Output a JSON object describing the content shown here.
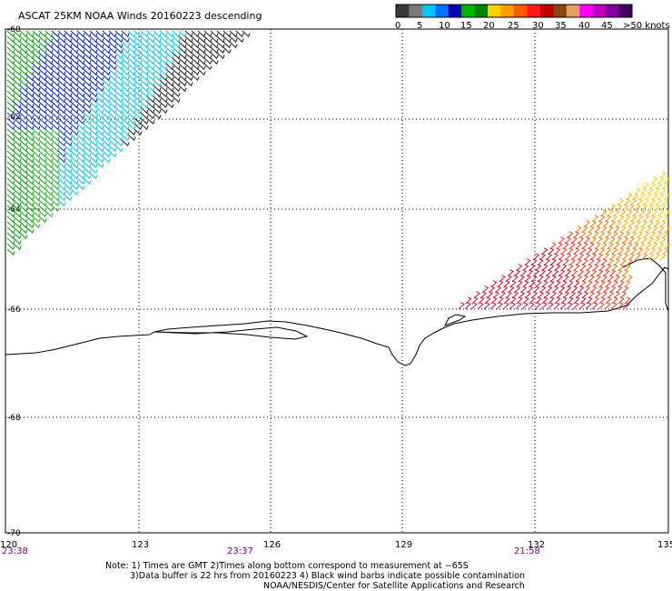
{
  "title": "ASCAT 25KM NOAA Winds 20160223 descending",
  "colorbar": {
    "colors": [
      "#3a3a3a",
      "#7a7a7a",
      "#00c8ff",
      "#0070ff",
      "#0000b0",
      "#00b400",
      "#008000",
      "#ffd000",
      "#ff9a00",
      "#ff5a00",
      "#ff1a1a",
      "#c00000",
      "#8b4513",
      "#e0a060",
      "#ff00ff",
      "#c000c0",
      "#8000a0",
      "#400060"
    ],
    "labels": [
      "0",
      "5",
      "10",
      "15",
      "20",
      "25",
      "30",
      "35",
      "40",
      "45",
      ">50 knots"
    ]
  },
  "lat_labels": [
    "-60",
    "-62",
    "-64",
    "-66",
    "-68",
    "-70"
  ],
  "lon_labels": [
    "120",
    "123",
    "126",
    "129",
    "132",
    "135"
  ],
  "time_labels": [
    "23:38",
    "23:37",
    "21:58"
  ],
  "notes": [
    "Note: 1) Times are GMT 2)Times along bottom correspond to measurement at −65S",
    "3)Data buffer is 22 hrs from 20160223 4) Black wind barbs indicate possible contamination",
    "NOAA/NESDIS/Center for Satellite Applications and Research"
  ]
}
